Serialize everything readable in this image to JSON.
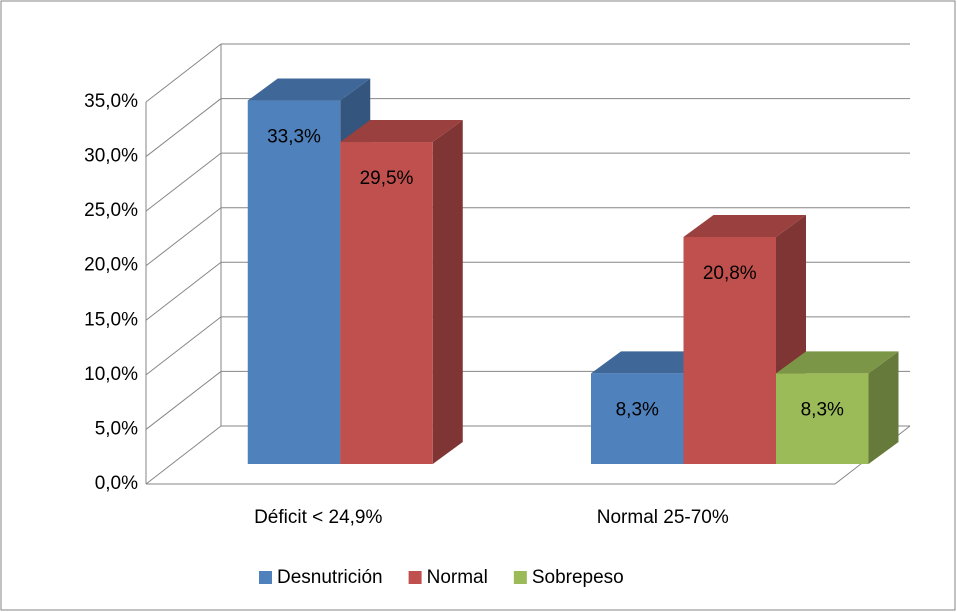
{
  "chart_data": {
    "type": "bar3d",
    "categories": [
      "Déficit < 24,9%",
      "Normal 25-70%"
    ],
    "series": [
      {
        "name": "Desnutrición",
        "color": "#4f81bd",
        "values": [
          33.3,
          8.3
        ],
        "value_labels": [
          "33,3%",
          "8,3%"
        ]
      },
      {
        "name": "Normal",
        "color": "#c0504d",
        "values": [
          29.5,
          20.8
        ],
        "value_labels": [
          "29,5%",
          "20,8%"
        ]
      },
      {
        "name": "Sobrepeso",
        "color": "#9bbb59",
        "values": [
          null,
          8.3
        ],
        "value_labels": [
          null,
          "8,3%"
        ]
      }
    ],
    "ylim": [
      0,
      35
    ],
    "yticks": [
      {
        "value": 0,
        "label": "0,0%"
      },
      {
        "value": 5,
        "label": "5,0%"
      },
      {
        "value": 10,
        "label": "10,0%"
      },
      {
        "value": 15,
        "label": "15,0%"
      },
      {
        "value": 20,
        "label": "20,0%"
      },
      {
        "value": 25,
        "label": "25,0%"
      },
      {
        "value": 30,
        "label": "30,0%"
      },
      {
        "value": 35,
        "label": "35,0%"
      }
    ],
    "grid": true,
    "legend": "bottom"
  }
}
